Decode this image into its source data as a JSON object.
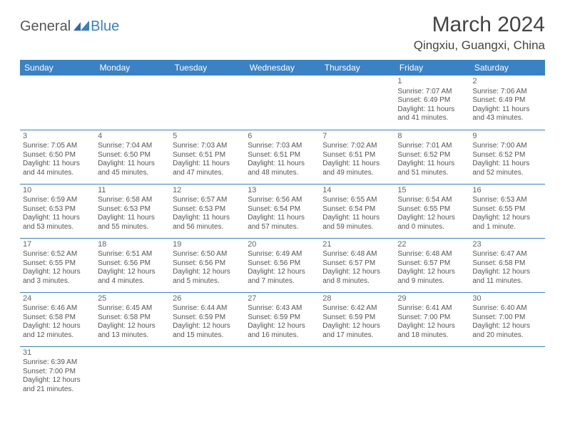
{
  "logo": {
    "part1": "General",
    "part2": "Blue"
  },
  "title": "March 2024",
  "location": "Qingxiu, Guangxi, China",
  "colors": {
    "header_bg": "#3b82c4",
    "header_text": "#ffffff",
    "border": "#3b82c4",
    "text": "#555555",
    "logo_blue": "#3b7fc4"
  },
  "day_headers": [
    "Sunday",
    "Monday",
    "Tuesday",
    "Wednesday",
    "Thursday",
    "Friday",
    "Saturday"
  ],
  "weeks": [
    [
      null,
      null,
      null,
      null,
      null,
      {
        "n": "1",
        "sr": "7:07 AM",
        "ss": "6:49 PM",
        "dl": "11 hours and 41 minutes."
      },
      {
        "n": "2",
        "sr": "7:06 AM",
        "ss": "6:49 PM",
        "dl": "11 hours and 43 minutes."
      }
    ],
    [
      {
        "n": "3",
        "sr": "7:05 AM",
        "ss": "6:50 PM",
        "dl": "11 hours and 44 minutes."
      },
      {
        "n": "4",
        "sr": "7:04 AM",
        "ss": "6:50 PM",
        "dl": "11 hours and 45 minutes."
      },
      {
        "n": "5",
        "sr": "7:03 AM",
        "ss": "6:51 PM",
        "dl": "11 hours and 47 minutes."
      },
      {
        "n": "6",
        "sr": "7:03 AM",
        "ss": "6:51 PM",
        "dl": "11 hours and 48 minutes."
      },
      {
        "n": "7",
        "sr": "7:02 AM",
        "ss": "6:51 PM",
        "dl": "11 hours and 49 minutes."
      },
      {
        "n": "8",
        "sr": "7:01 AM",
        "ss": "6:52 PM",
        "dl": "11 hours and 51 minutes."
      },
      {
        "n": "9",
        "sr": "7:00 AM",
        "ss": "6:52 PM",
        "dl": "11 hours and 52 minutes."
      }
    ],
    [
      {
        "n": "10",
        "sr": "6:59 AM",
        "ss": "6:53 PM",
        "dl": "11 hours and 53 minutes."
      },
      {
        "n": "11",
        "sr": "6:58 AM",
        "ss": "6:53 PM",
        "dl": "11 hours and 55 minutes."
      },
      {
        "n": "12",
        "sr": "6:57 AM",
        "ss": "6:53 PM",
        "dl": "11 hours and 56 minutes."
      },
      {
        "n": "13",
        "sr": "6:56 AM",
        "ss": "6:54 PM",
        "dl": "11 hours and 57 minutes."
      },
      {
        "n": "14",
        "sr": "6:55 AM",
        "ss": "6:54 PM",
        "dl": "11 hours and 59 minutes."
      },
      {
        "n": "15",
        "sr": "6:54 AM",
        "ss": "6:55 PM",
        "dl": "12 hours and 0 minutes."
      },
      {
        "n": "16",
        "sr": "6:53 AM",
        "ss": "6:55 PM",
        "dl": "12 hours and 1 minute."
      }
    ],
    [
      {
        "n": "17",
        "sr": "6:52 AM",
        "ss": "6:55 PM",
        "dl": "12 hours and 3 minutes."
      },
      {
        "n": "18",
        "sr": "6:51 AM",
        "ss": "6:56 PM",
        "dl": "12 hours and 4 minutes."
      },
      {
        "n": "19",
        "sr": "6:50 AM",
        "ss": "6:56 PM",
        "dl": "12 hours and 5 minutes."
      },
      {
        "n": "20",
        "sr": "6:49 AM",
        "ss": "6:56 PM",
        "dl": "12 hours and 7 minutes."
      },
      {
        "n": "21",
        "sr": "6:48 AM",
        "ss": "6:57 PM",
        "dl": "12 hours and 8 minutes."
      },
      {
        "n": "22",
        "sr": "6:48 AM",
        "ss": "6:57 PM",
        "dl": "12 hours and 9 minutes."
      },
      {
        "n": "23",
        "sr": "6:47 AM",
        "ss": "6:58 PM",
        "dl": "12 hours and 11 minutes."
      }
    ],
    [
      {
        "n": "24",
        "sr": "6:46 AM",
        "ss": "6:58 PM",
        "dl": "12 hours and 12 minutes."
      },
      {
        "n": "25",
        "sr": "6:45 AM",
        "ss": "6:58 PM",
        "dl": "12 hours and 13 minutes."
      },
      {
        "n": "26",
        "sr": "6:44 AM",
        "ss": "6:59 PM",
        "dl": "12 hours and 15 minutes."
      },
      {
        "n": "27",
        "sr": "6:43 AM",
        "ss": "6:59 PM",
        "dl": "12 hours and 16 minutes."
      },
      {
        "n": "28",
        "sr": "6:42 AM",
        "ss": "6:59 PM",
        "dl": "12 hours and 17 minutes."
      },
      {
        "n": "29",
        "sr": "6:41 AM",
        "ss": "7:00 PM",
        "dl": "12 hours and 18 minutes."
      },
      {
        "n": "30",
        "sr": "6:40 AM",
        "ss": "7:00 PM",
        "dl": "12 hours and 20 minutes."
      }
    ],
    [
      {
        "n": "31",
        "sr": "6:39 AM",
        "ss": "7:00 PM",
        "dl": "12 hours and 21 minutes."
      },
      null,
      null,
      null,
      null,
      null,
      null
    ]
  ],
  "labels": {
    "sunrise": "Sunrise:",
    "sunset": "Sunset:",
    "daylight": "Daylight:"
  }
}
